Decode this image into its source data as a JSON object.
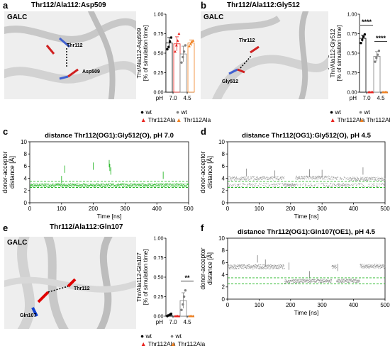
{
  "panels": {
    "a": {
      "letter": "a",
      "title": "Thr112/Ala112:Asp509",
      "protein": "GALC",
      "labels": [
        "Thr112",
        "Asp509"
      ]
    },
    "b": {
      "letter": "b",
      "title": "Thr112/Ala112:Gly512",
      "protein": "GALC",
      "labels": [
        "Thr112",
        "Gly512"
      ]
    },
    "c": {
      "letter": "c"
    },
    "d": {
      "letter": "d"
    },
    "e": {
      "letter": "e",
      "title": "Thr112/Ala112:Gln107",
      "protein": "GALC",
      "labels": [
        "Thr112",
        "Gln107"
      ]
    },
    "f": {
      "letter": "f"
    }
  },
  "legend": {
    "wt": "wt",
    "mut": "Thr112Ala"
  },
  "colors": {
    "wt_pH7": "#000000",
    "mut_pH7": "#e8221e",
    "wt_pH45": "#808080",
    "mut_pH45": "#f08020",
    "trace_pH7": "#2ab82a",
    "trace_pH45": "#8a8a8a",
    "band": "#2ab82a"
  },
  "chart_data": [
    {
      "id": "a-bars",
      "type": "bar",
      "ylabel": "hydrogen bond\nThr/Ala112-Asp509\n[% of simulation time]",
      "xlabel_prefix": "pH",
      "categories": [
        "7.0",
        "4.5"
      ],
      "ylim": [
        0,
        1
      ],
      "yticks": [
        "0.00",
        "0.25",
        "0.50",
        "0.75",
        "1.00"
      ],
      "series": [
        {
          "name": "wt",
          "values": [
            0.63,
            0.49
          ],
          "err": [
            0.07,
            0.1
          ],
          "points": [
            [
              0.55,
              0.58,
              0.65,
              0.7
            ],
            [
              0.38,
              0.45,
              0.52,
              0.6
            ]
          ]
        },
        {
          "name": "Thr112Ala",
          "values": [
            0.62,
            0.63
          ],
          "err": [
            0.09,
            0.04
          ],
          "points": [
            [
              0.52,
              0.6,
              0.66,
              0.75
            ],
            [
              0.59,
              0.62,
              0.64,
              0.66
            ]
          ]
        }
      ],
      "significance": []
    },
    {
      "id": "b-bars",
      "type": "bar",
      "ylabel": "hydrogen bond\nThr/Ala112-Gly512\n[% of simulation time]",
      "xlabel_prefix": "pH",
      "categories": [
        "7.0",
        "4.5"
      ],
      "ylim": [
        0,
        1
      ],
      "yticks": [
        "0.00",
        "0.25",
        "0.50",
        "0.75",
        "1.00"
      ],
      "series": [
        {
          "name": "wt",
          "values": [
            0.69,
            0.46
          ],
          "err": [
            0.04,
            0.06
          ],
          "points": [
            [
              0.63,
              0.67,
              0.71,
              0.74
            ],
            [
              0.39,
              0.44,
              0.48,
              0.53
            ]
          ]
        },
        {
          "name": "Thr112Ala",
          "values": [
            0.0,
            0.0
          ],
          "err": [
            0,
            0
          ],
          "points": [
            [
              0,
              0,
              0,
              0
            ],
            [
              0,
              0,
              0,
              0
            ]
          ]
        }
      ],
      "significance": [
        "****",
        "****"
      ]
    },
    {
      "id": "c-trace",
      "type": "scatter",
      "title": "distance Thr112(OG1):Gly512(O), pH 7.0",
      "xlabel": "Time [ns]",
      "ylabel": "donor-acceptor\ndistance [Å]",
      "xlim": [
        0,
        500
      ],
      "ylim": [
        0,
        10
      ],
      "xticks": [
        0,
        100,
        200,
        300,
        400,
        500
      ],
      "yticks": [
        0,
        2,
        4,
        6,
        8,
        10
      ],
      "band": [
        2.5,
        3.5
      ],
      "segments": [
        {
          "from": 0,
          "to": 500,
          "level": 2.9,
          "spread": 0.25
        }
      ],
      "spikes": [
        [
          110,
          6.1
        ],
        [
          200,
          6.6
        ],
        [
          250,
          7.0
        ],
        [
          252,
          6.4
        ],
        [
          255,
          5.8
        ],
        [
          420,
          5.1
        ],
        [
          100,
          4.4
        ]
      ]
    },
    {
      "id": "d-trace",
      "type": "scatter",
      "title": "distance Thr112(OG1):Gly512(O), pH 4.5",
      "xlabel": "Time [ns]",
      "ylabel": "donor-acceptor\ndistance [Å]",
      "xlim": [
        0,
        500
      ],
      "ylim": [
        0,
        10
      ],
      "xticks": [
        0,
        100,
        200,
        300,
        400,
        500
      ],
      "yticks": [
        0,
        2,
        4,
        6,
        8,
        10
      ],
      "band": [
        2.5,
        3.5
      ],
      "segments": [
        {
          "from": 0,
          "to": 180,
          "level": 4.0,
          "spread": 0.3,
          "alt": 2.9
        },
        {
          "from": 180,
          "to": 215,
          "level": 2.9,
          "spread": 0.25
        },
        {
          "from": 215,
          "to": 330,
          "level": 4.1,
          "spread": 0.3,
          "alt": 2.9
        },
        {
          "from": 330,
          "to": 385,
          "level": 2.9,
          "spread": 0.25,
          "alt": 4.0
        },
        {
          "from": 385,
          "to": 500,
          "level": 3.9,
          "spread": 0.3,
          "alt": 2.9
        }
      ],
      "spikes": [
        [
          60,
          5.6
        ],
        [
          150,
          5.3
        ],
        [
          260,
          5.5
        ],
        [
          300,
          5.4
        ],
        [
          430,
          5.8
        ]
      ]
    },
    {
      "id": "e-bars",
      "type": "bar",
      "ylabel": "hydrogen bond\nThr/Ala112-Gln107\n[% of simulation time]",
      "xlabel_prefix": "pH",
      "categories": [
        "7.0",
        "4.5"
      ],
      "ylim": [
        0,
        1
      ],
      "yticks": [
        "0.00",
        "0.25",
        "0.50",
        "0.75",
        "1.00"
      ],
      "series": [
        {
          "name": "wt",
          "values": [
            0.01,
            0.2
          ],
          "err": [
            0.01,
            0.1
          ],
          "points": [
            [
              0.0,
              0.01,
              0.02,
              0.03
            ],
            [
              0.08,
              0.15,
              0.25,
              0.33
            ]
          ]
        },
        {
          "name": "Thr112Ala",
          "values": [
            0.0,
            0.0
          ],
          "err": [
            0,
            0
          ],
          "points": [
            [
              0,
              0,
              0,
              0
            ],
            [
              0,
              0,
              0,
              0
            ]
          ]
        }
      ],
      "significance": [
        "",
        "**"
      ]
    },
    {
      "id": "f-trace",
      "type": "scatter",
      "title": "distance Thr112(OG1):Gln107(OE1), pH 4.5",
      "xlabel": "Time [ns]",
      "ylabel": "donor-acceptor\ndistance [Å]",
      "xlim": [
        0,
        500
      ],
      "ylim": [
        0,
        10
      ],
      "xticks": [
        0,
        100,
        200,
        300,
        400,
        500
      ],
      "yticks": [
        0,
        2,
        4,
        6,
        8,
        10
      ],
      "band": [
        2.5,
        3.5
      ],
      "segments": [
        {
          "from": 0,
          "to": 180,
          "level": 5.3,
          "spread": 0.35
        },
        {
          "from": 180,
          "to": 230,
          "level": 2.9,
          "spread": 0.3
        },
        {
          "from": 230,
          "to": 330,
          "level": 3.0,
          "spread": 0.3
        },
        {
          "from": 330,
          "to": 345,
          "level": 5.3,
          "spread": 0.3
        },
        {
          "from": 345,
          "to": 420,
          "level": 3.0,
          "spread": 0.3
        },
        {
          "from": 420,
          "to": 500,
          "level": 5.4,
          "spread": 0.35
        }
      ],
      "spikes": [
        [
          95,
          7.2
        ],
        [
          120,
          6.5
        ],
        [
          195,
          6.0
        ],
        [
          260,
          4.6
        ],
        [
          350,
          5.8
        ]
      ]
    }
  ]
}
